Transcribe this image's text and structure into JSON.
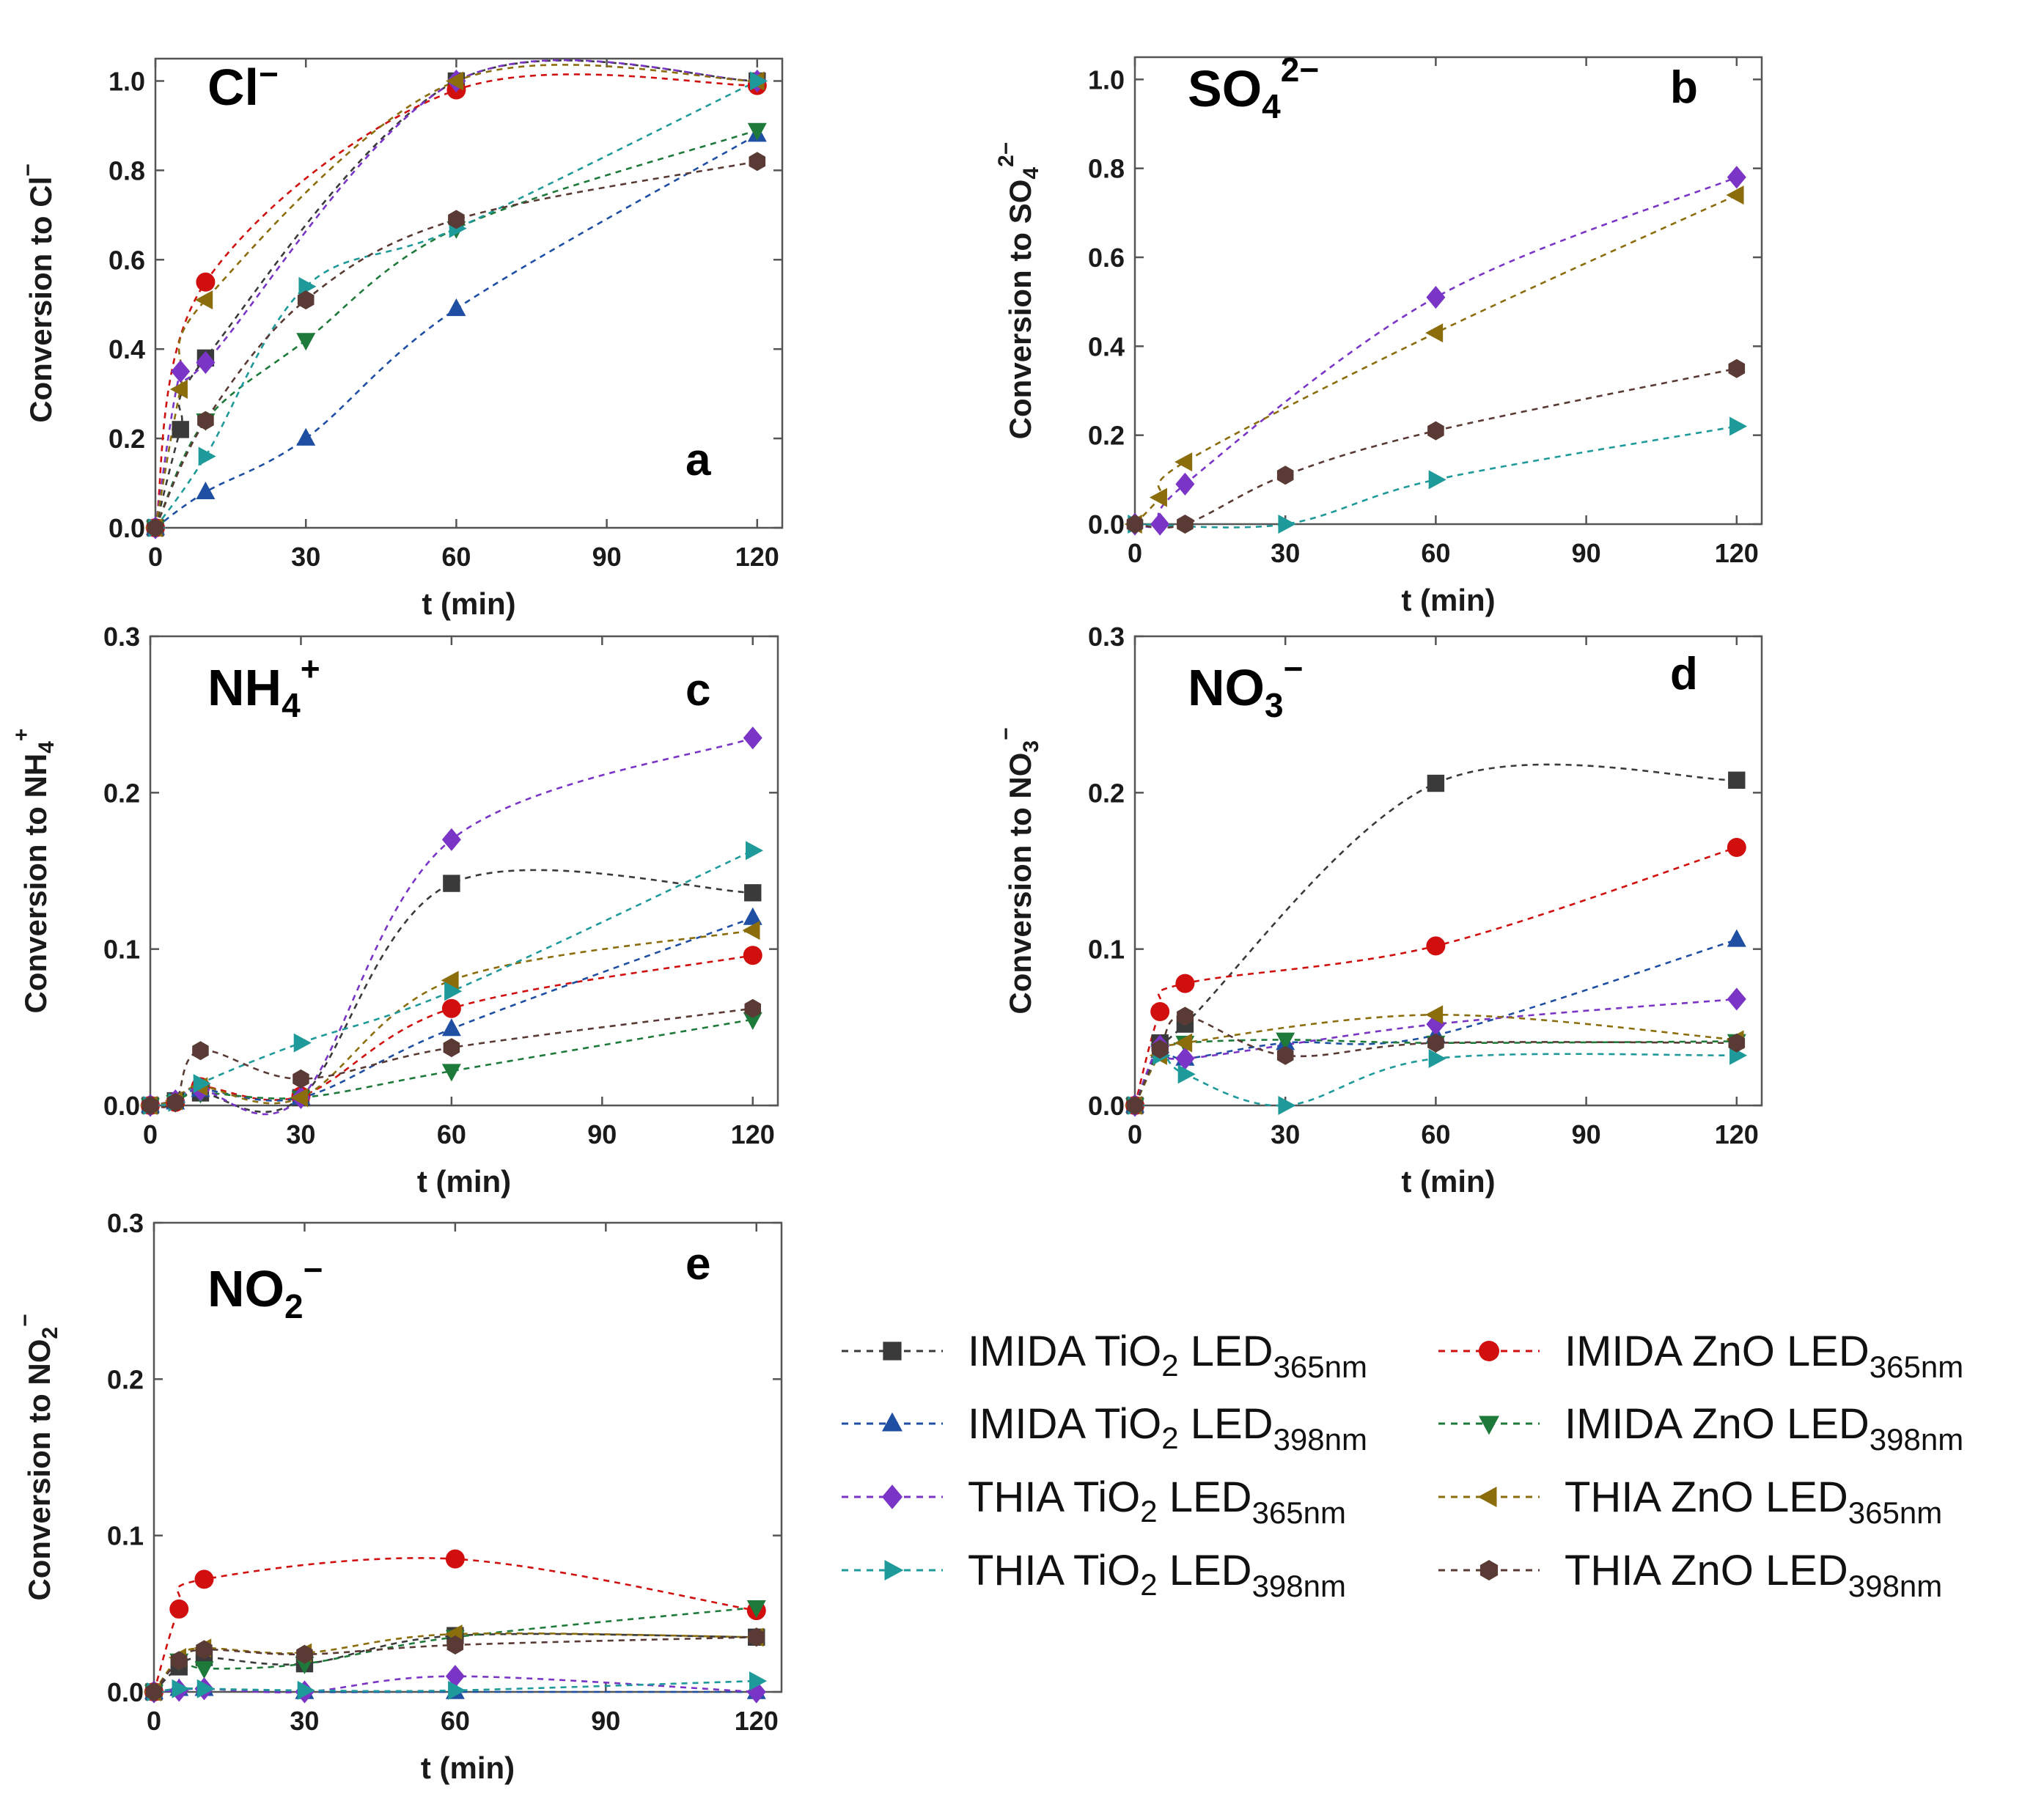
{
  "chart_data": {
    "type": "scatter",
    "x_title": "t (min)",
    "legend": [
      {
        "name": "IMIDA TiO2 LED365nm",
        "base": "IMIDA TiO",
        "sub1": "2",
        "mid": " LED",
        "sub2": "365nm",
        "color": "#3a3a3a",
        "marker": "square"
      },
      {
        "name": "IMIDA ZnO LED365nm",
        "base": "IMIDA ZnO LED",
        "sub1": "",
        "mid": "",
        "sub2": "365nm",
        "color": "#d10f0f",
        "marker": "circle"
      },
      {
        "name": "IMIDA TiO2 LED398nm",
        "base": "IMIDA TiO",
        "sub1": "2",
        "mid": " LED",
        "sub2": "398nm",
        "color": "#1f4fa3",
        "marker": "triangle-up"
      },
      {
        "name": "IMIDA ZnO LED398nm",
        "base": "IMIDA ZnO LED",
        "sub1": "",
        "mid": "",
        "sub2": "398nm",
        "color": "#1e7a3a",
        "marker": "triangle-down"
      },
      {
        "name": "THIA TiO2 LED365nm",
        "base": "THIA TiO",
        "sub1": "2",
        "mid": " LED",
        "sub2": "365nm",
        "color": "#7a35c6",
        "marker": "diamond"
      },
      {
        "name": "THIA ZnO LED365nm",
        "base": "THIA ZnO LED",
        "sub1": "",
        "mid": "",
        "sub2": "365nm",
        "color": "#8b6d0c",
        "marker": "triangle-left"
      },
      {
        "name": "THIA TiO2 LED398nm",
        "base": "THIA TiO",
        "sub1": "2",
        "mid": " LED",
        "sub2": "398nm",
        "color": "#1f9a9a",
        "marker": "triangle-right"
      },
      {
        "name": "THIA ZnO LED398nm",
        "base": "THIA ZnO LED",
        "sub1": "",
        "mid": "",
        "sub2": "398nm",
        "color": "#5a3a34",
        "marker": "hexagon"
      }
    ],
    "panels": [
      {
        "id": "a",
        "letter": "a",
        "ion": {
          "base": "Cl",
          "sub": "",
          "sup": "−"
        },
        "ylabel": {
          "base": "Conversion to Cl",
          "sub": "",
          "sup": "−"
        },
        "xlim": [
          0,
          125
        ],
        "ylim": [
          0,
          1.05
        ],
        "xticks": [
          0,
          30,
          60,
          90,
          120
        ],
        "yticks": [
          0.0,
          0.2,
          0.4,
          0.6,
          0.8,
          1.0
        ],
        "ytick_labels": [
          "0.0",
          "0.2",
          "0.4",
          "0.6",
          "0.8",
          "1.0"
        ],
        "x": [
          0,
          5,
          10,
          30,
          60,
          120
        ],
        "series": [
          {
            "name": "IMIDA TiO2 LED365nm",
            "values": [
              0,
              0.22,
              0.38,
              null,
              1.0,
              1.0
            ]
          },
          {
            "name": "IMIDA ZnO LED365nm",
            "values": [
              0,
              null,
              0.55,
              null,
              0.98,
              0.99
            ]
          },
          {
            "name": "IMIDA TiO2 LED398nm",
            "values": [
              0,
              null,
              0.08,
              0.2,
              0.49,
              0.88
            ]
          },
          {
            "name": "IMIDA ZnO LED398nm",
            "values": [
              0,
              null,
              0.24,
              0.42,
              0.67,
              0.89
            ]
          },
          {
            "name": "THIA TiO2 LED365nm",
            "values": [
              0,
              0.35,
              0.37,
              null,
              1.0,
              1.0
            ]
          },
          {
            "name": "THIA ZnO LED365nm",
            "values": [
              0,
              0.31,
              0.51,
              null,
              1.0,
              1.0
            ]
          },
          {
            "name": "THIA TiO2 LED398nm",
            "values": [
              0,
              null,
              0.16,
              0.54,
              0.67,
              1.0
            ]
          },
          {
            "name": "THIA ZnO LED398nm",
            "values": [
              0,
              null,
              0.24,
              0.51,
              0.69,
              0.82
            ]
          }
        ]
      },
      {
        "id": "b",
        "letter": "b",
        "ion": {
          "base": "SO",
          "sub": "4",
          "sup": "2−"
        },
        "ylabel": {
          "base": "Conversion to SO",
          "sub": "4",
          "sup": "2−"
        },
        "xlim": [
          0,
          125
        ],
        "ylim": [
          0,
          1.05
        ],
        "xticks": [
          0,
          30,
          60,
          90,
          120
        ],
        "yticks": [
          0.0,
          0.2,
          0.4,
          0.6,
          0.8,
          1.0
        ],
        "ytick_labels": [
          "0.0",
          "0.2",
          "0.4",
          "0.6",
          "0.8",
          "1.0"
        ],
        "x": [
          0,
          5,
          10,
          30,
          60,
          120
        ],
        "series": [
          {
            "name": "THIA TiO2 LED365nm",
            "values": [
              0,
              0.0,
              0.09,
              null,
              0.51,
              0.78
            ]
          },
          {
            "name": "THIA ZnO LED365nm",
            "values": [
              0,
              0.06,
              0.14,
              null,
              0.43,
              0.74
            ]
          },
          {
            "name": "THIA TiO2 LED398nm",
            "values": [
              0,
              null,
              null,
              0.0,
              0.1,
              0.22
            ]
          },
          {
            "name": "THIA ZnO LED398nm",
            "values": [
              0,
              null,
              0.0,
              0.11,
              0.21,
              0.35
            ]
          }
        ]
      },
      {
        "id": "c",
        "letter": "c",
        "ion": {
          "base": "NH",
          "sub": "4",
          "sup": "+"
        },
        "ylabel": {
          "base": "Conversion to NH",
          "sub": "4",
          "sup": "+"
        },
        "xlim": [
          0,
          125
        ],
        "ylim": [
          0,
          0.3
        ],
        "xticks": [
          0,
          30,
          60,
          90,
          120
        ],
        "yticks": [
          0.0,
          0.1,
          0.2,
          0.3
        ],
        "ytick_labels": [
          "0.0",
          "0.1",
          "0.2",
          "0.3"
        ],
        "x": [
          0,
          5,
          10,
          30,
          60,
          120
        ],
        "series": [
          {
            "name": "IMIDA TiO2 LED365nm",
            "values": [
              0,
              0.003,
              0.008,
              0.005,
              0.142,
              0.136
            ]
          },
          {
            "name": "IMIDA ZnO LED365nm",
            "values": [
              0,
              0.002,
              0.012,
              0.006,
              0.062,
              0.096
            ]
          },
          {
            "name": "IMIDA TiO2 LED398nm",
            "values": [
              0,
              0.002,
              0.01,
              0.005,
              0.049,
              0.12
            ]
          },
          {
            "name": "IMIDA ZnO LED398nm",
            "values": [
              0,
              0.002,
              0.008,
              0.005,
              0.022,
              0.055
            ]
          },
          {
            "name": "THIA TiO2 LED365nm",
            "values": [
              0,
              0.003,
              0.01,
              0.005,
              0.17,
              0.235
            ]
          },
          {
            "name": "THIA ZnO LED365nm",
            "values": [
              0,
              0.003,
              0.012,
              0.005,
              0.08,
              0.112
            ]
          },
          {
            "name": "THIA TiO2 LED398nm",
            "values": [
              0,
              0.002,
              0.014,
              0.04,
              0.073,
              0.163
            ]
          },
          {
            "name": "THIA ZnO LED398nm",
            "values": [
              0,
              0.002,
              0.035,
              0.017,
              0.037,
              0.062
            ]
          }
        ]
      },
      {
        "id": "d",
        "letter": "d",
        "ion": {
          "base": "NO",
          "sub": "3",
          "sup": "−"
        },
        "ylabel": {
          "base": "Conversion to NO",
          "sub": "3",
          "sup": "−"
        },
        "xlim": [
          0,
          125
        ],
        "ylim": [
          0,
          0.3
        ],
        "xticks": [
          0,
          30,
          60,
          90,
          120
        ],
        "yticks": [
          0.0,
          0.1,
          0.2,
          0.3
        ],
        "ytick_labels": [
          "0.0",
          "0.1",
          "0.2",
          "0.3"
        ],
        "x": [
          0,
          5,
          10,
          30,
          60,
          120
        ],
        "series": [
          {
            "name": "IMIDA TiO2 LED365nm",
            "values": [
              0,
              0.04,
              0.052,
              null,
              0.206,
              0.208
            ]
          },
          {
            "name": "IMIDA ZnO LED365nm",
            "values": [
              0,
              0.06,
              0.078,
              null,
              0.102,
              0.165
            ]
          },
          {
            "name": "IMIDA TiO2 LED398nm",
            "values": [
              0,
              0.035,
              0.03,
              0.04,
              0.045,
              0.106
            ]
          },
          {
            "name": "IMIDA ZnO LED398nm",
            "values": [
              0,
              0.035,
              0.04,
              0.042,
              0.04,
              0.041
            ]
          },
          {
            "name": "THIA TiO2 LED365nm",
            "values": [
              0,
              0.038,
              0.03,
              null,
              0.052,
              0.068
            ]
          },
          {
            "name": "THIA ZnO LED365nm",
            "values": [
              0,
              0.032,
              0.04,
              null,
              0.058,
              0.042
            ]
          },
          {
            "name": "THIA TiO2 LED398nm",
            "values": [
              0,
              0.032,
              0.02,
              0.0,
              0.03,
              0.032
            ]
          },
          {
            "name": "THIA ZnO LED398nm",
            "values": [
              0,
              0.036,
              0.057,
              0.032,
              0.04,
              0.04
            ]
          }
        ]
      },
      {
        "id": "e",
        "letter": "e",
        "ion": {
          "base": "NO",
          "sub": "2",
          "sup": "−"
        },
        "ylabel": {
          "base": "Conversion to NO",
          "sub": "2",
          "sup": "−"
        },
        "xlim": [
          0,
          125
        ],
        "ylim": [
          0,
          0.3
        ],
        "xticks": [
          0,
          30,
          60,
          90,
          120
        ],
        "yticks": [
          0.0,
          0.1,
          0.2,
          0.3
        ],
        "ytick_labels": [
          "0.0",
          "0.1",
          "0.2",
          "0.3"
        ],
        "x": [
          0,
          5,
          10,
          30,
          60,
          120
        ],
        "series": [
          {
            "name": "IMIDA TiO2 LED365nm",
            "values": [
              0,
              0.016,
              0.022,
              0.018,
              0.036,
              0.035
            ]
          },
          {
            "name": "IMIDA ZnO LED365nm",
            "values": [
              0,
              0.053,
              0.072,
              null,
              0.085,
              0.052
            ]
          },
          {
            "name": "IMIDA TiO2 LED398nm",
            "values": [
              0,
              0.002,
              0.002,
              0.0,
              0.0,
              0.0
            ]
          },
          {
            "name": "IMIDA ZnO LED398nm",
            "values": [
              0,
              0.02,
              0.015,
              0.018,
              0.035,
              0.054
            ]
          },
          {
            "name": "THIA TiO2 LED365nm",
            "values": [
              0,
              0.001,
              0.002,
              0.0,
              0.01,
              0.0
            ]
          },
          {
            "name": "THIA ZnO LED365nm",
            "values": [
              0,
              0.022,
              0.028,
              0.025,
              0.037,
              0.035
            ]
          },
          {
            "name": "THIA TiO2 LED398nm",
            "values": [
              0,
              0.002,
              0.002,
              0.001,
              0.001,
              0.007
            ]
          },
          {
            "name": "THIA ZnO LED398nm",
            "values": [
              0,
              0.02,
              0.027,
              0.024,
              0.03,
              0.035
            ]
          }
        ]
      }
    ]
  }
}
